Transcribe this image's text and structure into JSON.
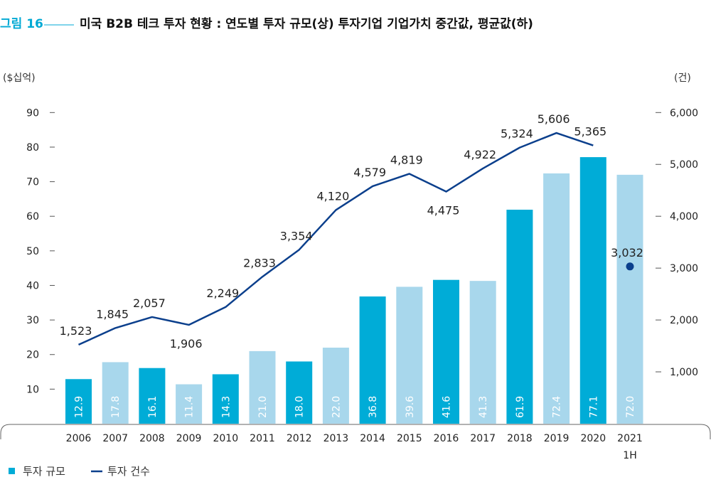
{
  "header": {
    "figure_label": "그림 16",
    "title": "미국 B2B 테크 투자 현황 : 연도별 투자 규모(상) 투자기업 기업가치 중간값, 평균값(하)"
  },
  "chart_data": {
    "type": "bar",
    "categories": [
      "2006",
      "2007",
      "2008",
      "2009",
      "2010",
      "2011",
      "2012",
      "2013",
      "2014",
      "2015",
      "2016",
      "2017",
      "2018",
      "2019",
      "2020",
      "2021"
    ],
    "category_sublabels": {
      "2021": "1H"
    },
    "left_axis": {
      "unit_label": "($십억)",
      "ylim": [
        0,
        95
      ],
      "ticks": [
        10,
        20,
        30,
        40,
        50,
        60,
        70,
        80,
        90
      ]
    },
    "right_axis": {
      "unit_label": "(건)",
      "ylim": [
        0,
        6333
      ],
      "ticks": [
        1000,
        2000,
        3000,
        4000,
        5000,
        6000
      ],
      "tick_labels": [
        "1,000",
        "2,000",
        "3,000",
        "4,000",
        "5,000",
        "6,000"
      ]
    },
    "series": [
      {
        "name": "투자 규모",
        "kind": "bar",
        "axis": "left",
        "values": [
          12.9,
          17.8,
          16.1,
          11.4,
          14.3,
          21.0,
          18.0,
          22.0,
          36.8,
          39.6,
          41.6,
          41.3,
          61.9,
          72.4,
          77.1,
          72.0
        ],
        "labels": [
          "12.9",
          "17.8",
          "16.1",
          "11.4",
          "14.3",
          "21.0",
          "18.0",
          "22.0",
          "36.8",
          "39.6",
          "41.6",
          "41.3",
          "61.9",
          "72.4",
          "77.1",
          "72.0"
        ],
        "colors": {
          "dark": "#00acd7",
          "light": "#a8d7ec"
        }
      },
      {
        "name": "투자 건수",
        "kind": "line",
        "axis": "right",
        "values": [
          1523,
          1845,
          2057,
          1906,
          2249,
          2833,
          3354,
          4120,
          4579,
          4819,
          4475,
          4922,
          5324,
          5606,
          5365,
          3032
        ],
        "labels": [
          "1,523",
          "1,845",
          "2,057",
          "1,906",
          "2,249",
          "2,833",
          "3,354",
          "4,120",
          "4,579",
          "4,819",
          "4,475",
          "4,922",
          "5,324",
          "5,606",
          "5,365",
          "3,032"
        ],
        "color": "#0b3f8c"
      }
    ],
    "legend": {
      "placement": "bottom-left"
    },
    "grid": false
  }
}
